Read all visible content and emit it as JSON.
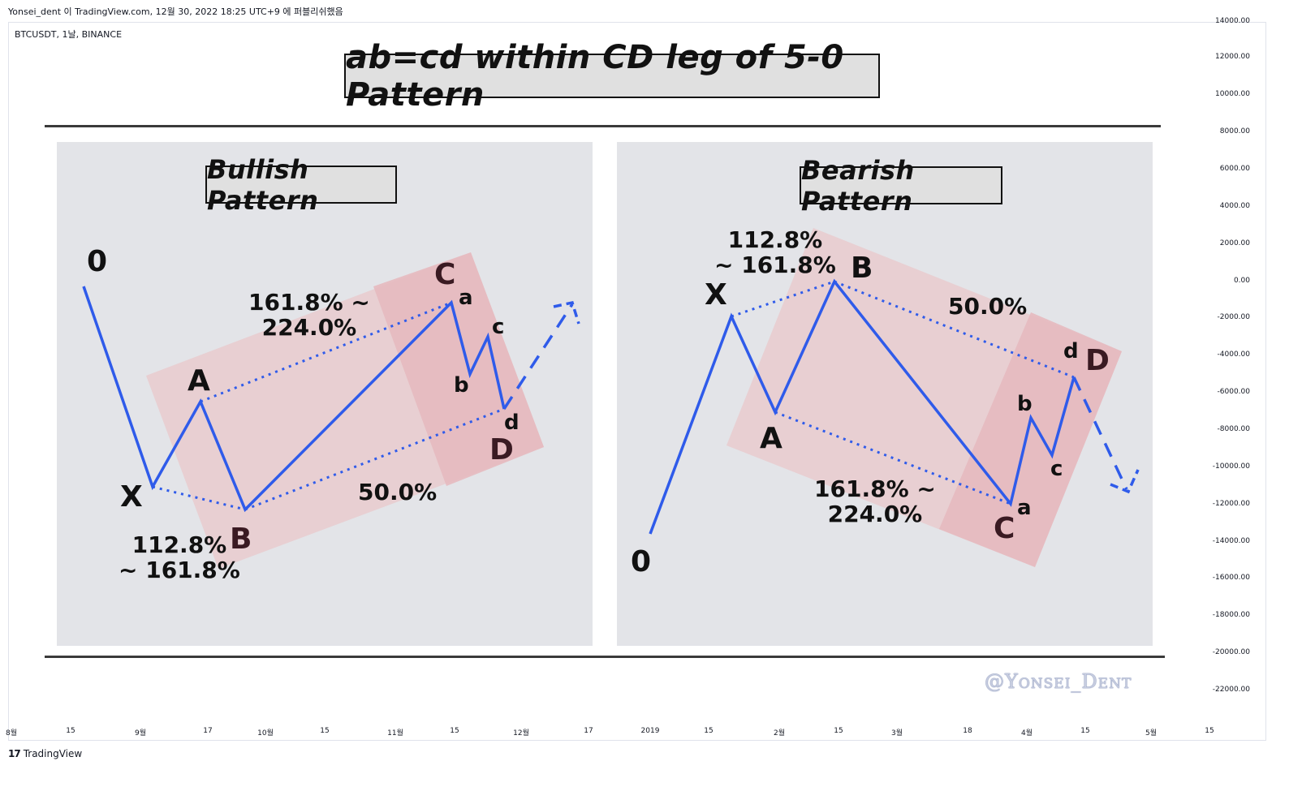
{
  "header": {
    "publish_line": "Yonsei_dent 이 TradingView.com, 12월 30, 2022 18:25 UTC+9 에 퍼블리쉬했음"
  },
  "chart_symbol": "BTCUSDT, 1날, BINANCE",
  "title": "ab=cd within CD leg of 5-0 Pattern",
  "bullish": {
    "heading": "Bullish Pattern",
    "points": {
      "zero": "0",
      "x": "X",
      "a": "A",
      "b": "B",
      "c": "C",
      "d": "D",
      "sa": "a",
      "sb": "b",
      "sc": "c",
      "sd": "d"
    },
    "ratio_xb": [
      "112.8%",
      "~ 161.8%"
    ],
    "ratio_ac": [
      "161.8% ~",
      "224.0%"
    ],
    "ratio_bd": "50.0%"
  },
  "bearish": {
    "heading": "Bearish Pattern",
    "points": {
      "zero": "0",
      "x": "X",
      "a": "A",
      "b": "B",
      "c": "C",
      "d": "D",
      "sa": "a",
      "sb": "b",
      "sc": "c",
      "sd": "d"
    },
    "ratio_xb": [
      "112.8%",
      "~ 161.8%"
    ],
    "ratio_ac": [
      "161.8% ~",
      "224.0%"
    ],
    "ratio_bd": "50.0%"
  },
  "watermark": "@Yonsei_Dent",
  "y_axis": [
    "14000.00",
    "12000.00",
    "10000.00",
    "8000.00",
    "6000.00",
    "4000.00",
    "2000.00",
    "0.00",
    "-2000.00",
    "-4000.00",
    "-6000.00",
    "-8000.00",
    "-10000.00",
    "-12000.00",
    "-14000.00",
    "-16000.00",
    "-18000.00",
    "-20000.00",
    "-22000.00"
  ],
  "x_axis": [
    "8월",
    "15",
    "9월",
    "17",
    "10월",
    "15",
    "11월",
    "15",
    "12월",
    "17",
    "2019",
    "15",
    "2월",
    "15",
    "3월",
    "18",
    "4월",
    "15",
    "5월",
    "15"
  ],
  "footer": {
    "brand": "TradingView",
    "logo": "17"
  },
  "colors": {
    "line": "#2f5bea",
    "zone_light": "#e8cccf",
    "zone_dark": "#e6b9bf",
    "panel": "#e3e4e8"
  }
}
